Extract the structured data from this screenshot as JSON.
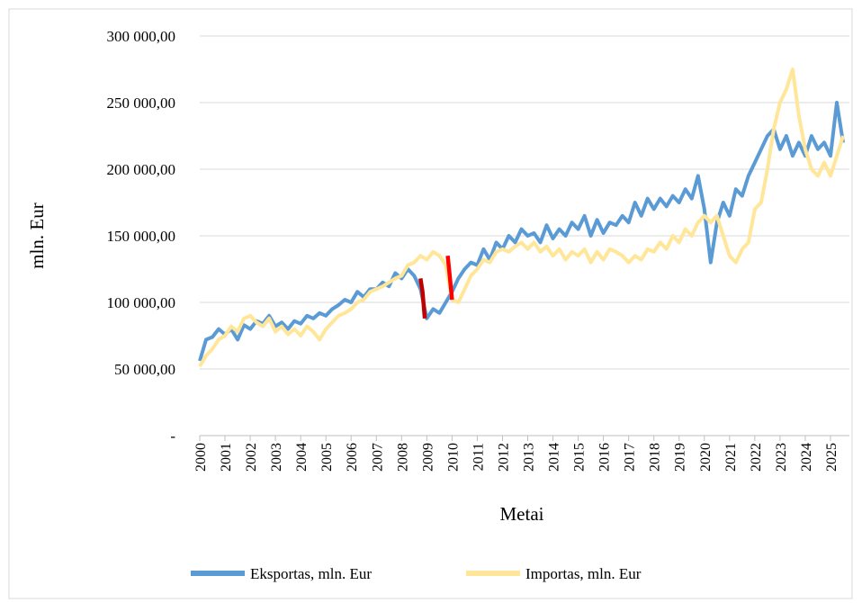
{
  "chart_data": {
    "type": "line",
    "x_label": "Metai",
    "y_label": "mln. Eur",
    "x": [
      2000,
      2000.25,
      2000.5,
      2000.75,
      2001,
      2001.25,
      2001.5,
      2001.75,
      2002,
      2002.25,
      2002.5,
      2002.75,
      2003,
      2003.25,
      2003.5,
      2003.75,
      2004,
      2004.25,
      2004.5,
      2004.75,
      2005,
      2005.25,
      2005.5,
      2005.75,
      2006,
      2006.25,
      2006.5,
      2006.75,
      2007,
      2007.25,
      2007.5,
      2007.75,
      2008,
      2008.25,
      2008.5,
      2008.75,
      2009,
      2009.25,
      2009.5,
      2009.75,
      2010,
      2010.25,
      2010.5,
      2010.75,
      2011,
      2011.25,
      2011.5,
      2011.75,
      2012,
      2012.25,
      2012.5,
      2012.75,
      2013,
      2013.25,
      2013.5,
      2013.75,
      2014,
      2014.25,
      2014.5,
      2014.75,
      2015,
      2015.25,
      2015.5,
      2015.75,
      2016,
      2016.25,
      2016.5,
      2016.75,
      2017,
      2017.25,
      2017.5,
      2017.75,
      2018,
      2018.25,
      2018.5,
      2018.75,
      2019,
      2019.25,
      2019.5,
      2019.75,
      2020,
      2020.25,
      2020.5,
      2020.75,
      2021,
      2021.25,
      2021.5,
      2021.75,
      2022,
      2022.25,
      2022.5,
      2022.75,
      2023,
      2023.25,
      2023.5,
      2023.75,
      2024,
      2024.25,
      2024.5,
      2024.75,
      2025,
      2025.25,
      2025.5
    ],
    "series": [
      {
        "name": "Eksportas, mln. Eur",
        "color": "#5b9bd5",
        "values": [
          56000,
          72000,
          74000,
          80000,
          76000,
          80000,
          72000,
          83000,
          80000,
          86000,
          84000,
          90000,
          82000,
          85000,
          80000,
          86000,
          84000,
          90000,
          88000,
          92000,
          90000,
          95000,
          98000,
          102000,
          100000,
          108000,
          104000,
          110000,
          110000,
          115000,
          112000,
          122000,
          118000,
          125000,
          120000,
          110000,
          88000,
          95000,
          92000,
          100000,
          108000,
          118000,
          125000,
          130000,
          128000,
          140000,
          132000,
          145000,
          140000,
          150000,
          145000,
          155000,
          150000,
          152000,
          145000,
          158000,
          148000,
          155000,
          150000,
          160000,
          155000,
          165000,
          150000,
          162000,
          152000,
          160000,
          158000,
          165000,
          160000,
          175000,
          165000,
          178000,
          170000,
          178000,
          172000,
          180000,
          175000,
          185000,
          178000,
          195000,
          170000,
          130000,
          160000,
          175000,
          165000,
          185000,
          180000,
          195000,
          205000,
          215000,
          225000,
          230000,
          215000,
          225000,
          210000,
          220000,
          210000,
          225000,
          215000,
          220000,
          210000,
          250000,
          220000
        ]
      },
      {
        "name": "Importas, mln. Eur",
        "color": "#ffe699",
        "values": [
          52000,
          60000,
          65000,
          72000,
          75000,
          82000,
          78000,
          88000,
          90000,
          85000,
          82000,
          88000,
          78000,
          82000,
          76000,
          80000,
          75000,
          82000,
          78000,
          72000,
          80000,
          85000,
          90000,
          92000,
          95000,
          100000,
          102000,
          108000,
          110000,
          112000,
          115000,
          118000,
          120000,
          128000,
          130000,
          135000,
          132000,
          138000,
          135000,
          128000,
          102000,
          100000,
          110000,
          120000,
          125000,
          132000,
          130000,
          138000,
          140000,
          138000,
          142000,
          145000,
          140000,
          145000,
          138000,
          142000,
          135000,
          140000,
          132000,
          138000,
          135000,
          140000,
          130000,
          138000,
          132000,
          140000,
          138000,
          135000,
          130000,
          135000,
          132000,
          140000,
          138000,
          145000,
          140000,
          150000,
          145000,
          155000,
          150000,
          160000,
          165000,
          160000,
          165000,
          150000,
          135000,
          130000,
          140000,
          145000,
          170000,
          175000,
          200000,
          230000,
          250000,
          260000,
          275000,
          240000,
          215000,
          200000,
          195000,
          205000,
          195000,
          210000,
          225000
        ]
      }
    ],
    "highlights": [
      {
        "color": "#c00000",
        "x": [
          2008.75,
          2008.83,
          2008.92
        ],
        "values": [
          118000,
          108000,
          88000
        ]
      },
      {
        "color": "#ff0000",
        "x": [
          2009.83,
          2009.92,
          2010
        ],
        "values": [
          135000,
          118000,
          102000
        ]
      }
    ],
    "xlim": [
      2000,
      2025.75
    ],
    "xticks": [
      2000,
      2001,
      2002,
      2003,
      2004,
      2005,
      2006,
      2007,
      2008,
      2009,
      2010,
      2011,
      2012,
      2013,
      2014,
      2015,
      2016,
      2017,
      2018,
      2019,
      2020,
      2021,
      2022,
      2023,
      2024,
      2025
    ],
    "ylim": [
      0,
      300000
    ],
    "yticks": [
      {
        "value": 0,
        "label": "-"
      },
      {
        "value": 50000,
        "label": "50 000,00"
      },
      {
        "value": 100000,
        "label": "100 000,00"
      },
      {
        "value": 150000,
        "label": "150 000,00"
      },
      {
        "value": 200000,
        "label": "200 000,00"
      },
      {
        "value": 250000,
        "label": "250 000,00"
      },
      {
        "value": 300000,
        "label": "300 000,00"
      }
    ],
    "grid": true,
    "legend": "bottom"
  }
}
